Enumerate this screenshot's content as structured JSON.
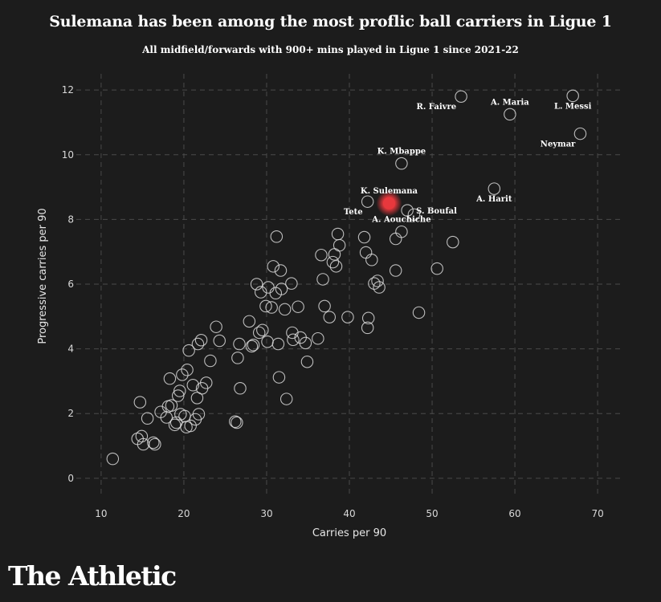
{
  "chart_data": {
    "type": "scatter",
    "title": "Sulemana has been among the most proflic ball carriers in Ligue 1",
    "subtitle": "All midfield/forwards with 900+ mins played in Ligue 1 since 2021-22",
    "xlabel": "Carries per 90",
    "ylabel": "Progressive carries per 90",
    "xlim": [
      7,
      73
    ],
    "ylim": [
      -0.6,
      12.5
    ],
    "xticks": [
      10,
      20,
      30,
      40,
      50,
      60,
      70
    ],
    "yticks": [
      0,
      2,
      4,
      6,
      8,
      10,
      12
    ],
    "grid": true,
    "colors": {
      "background": "#1c1c1c",
      "point_stroke": "#d9d9d9",
      "grid": "#4a4a4a",
      "highlight": "#e8383d"
    },
    "highlight": {
      "name": "K. Sulemana",
      "x": 44.8,
      "y": 8.5
    },
    "labeled_points": [
      {
        "name": "R. Faivre",
        "x": 53.5,
        "y": 11.8,
        "anchor": "end",
        "pos": "below-left"
      },
      {
        "name": "A. Maria",
        "x": 59.4,
        "y": 11.25,
        "anchor": "middle",
        "pos": "above"
      },
      {
        "name": "L. Messi",
        "x": 67.0,
        "y": 11.82,
        "anchor": "middle",
        "pos": "below"
      },
      {
        "name": "Neymar",
        "x": 67.9,
        "y": 10.65,
        "anchor": "end",
        "pos": "below-left"
      },
      {
        "name": "K. Mbappe",
        "x": 46.3,
        "y": 9.73,
        "anchor": "middle",
        "pos": "above"
      },
      {
        "name": "A. Harit",
        "x": 57.5,
        "y": 8.95,
        "anchor": "middle",
        "pos": "below"
      },
      {
        "name": "K. Sulemana",
        "x": 44.8,
        "y": 8.5,
        "anchor": "middle",
        "pos": "above"
      },
      {
        "name": "Tete",
        "x": 42.2,
        "y": 8.55,
        "anchor": "end",
        "pos": "below-left"
      },
      {
        "name": "S. Boufal",
        "x": 47.0,
        "y": 8.28,
        "anchor": "start",
        "pos": "right"
      },
      {
        "name": "A. Aouchiche",
        "x": 46.3,
        "y": 7.62,
        "anchor": "middle",
        "pos": "above"
      }
    ],
    "points": [
      [
        11.4,
        0.6
      ],
      [
        14.4,
        1.22
      ],
      [
        14.7,
        2.35
      ],
      [
        14.9,
        1.3
      ],
      [
        15.1,
        1.05
      ],
      [
        15.6,
        1.85
      ],
      [
        16.3,
        1.1
      ],
      [
        16.5,
        1.05
      ],
      [
        17.2,
        2.05
      ],
      [
        17.9,
        1.88
      ],
      [
        18.1,
        2.22
      ],
      [
        18.3,
        3.08
      ],
      [
        18.5,
        2.25
      ],
      [
        18.9,
        1.65
      ],
      [
        19.1,
        1.72
      ],
      [
        19.3,
        2.55
      ],
      [
        19.5,
        2.7
      ],
      [
        19.6,
        1.98
      ],
      [
        19.8,
        3.2
      ],
      [
        20.1,
        1.92
      ],
      [
        20.3,
        1.58
      ],
      [
        20.4,
        3.35
      ],
      [
        20.6,
        3.95
      ],
      [
        20.8,
        1.62
      ],
      [
        21.1,
        2.88
      ],
      [
        21.4,
        1.82
      ],
      [
        21.6,
        2.48
      ],
      [
        21.7,
        4.15
      ],
      [
        21.8,
        1.98
      ],
      [
        22.1,
        4.27
      ],
      [
        22.2,
        2.78
      ],
      [
        22.7,
        2.95
      ],
      [
        23.2,
        3.63
      ],
      [
        23.9,
        4.68
      ],
      [
        24.3,
        4.25
      ],
      [
        26.2,
        1.75
      ],
      [
        26.4,
        1.72
      ],
      [
        26.5,
        3.72
      ],
      [
        26.7,
        4.15
      ],
      [
        26.8,
        2.78
      ],
      [
        27.9,
        4.85
      ],
      [
        28.2,
        4.08
      ],
      [
        28.4,
        4.12
      ],
      [
        28.8,
        6.0
      ],
      [
        29.1,
        4.5
      ],
      [
        29.3,
        5.75
      ],
      [
        29.5,
        4.58
      ],
      [
        29.9,
        5.32
      ],
      [
        30.1,
        4.22
      ],
      [
        30.2,
        5.9
      ],
      [
        30.6,
        5.28
      ],
      [
        30.8,
        6.55
      ],
      [
        31.1,
        5.72
      ],
      [
        31.2,
        7.47
      ],
      [
        31.4,
        4.15
      ],
      [
        31.5,
        3.12
      ],
      [
        31.7,
        6.42
      ],
      [
        31.8,
        5.85
      ],
      [
        32.2,
        5.22
      ],
      [
        32.4,
        2.45
      ],
      [
        33.0,
        6.02
      ],
      [
        33.1,
        4.5
      ],
      [
        33.2,
        4.28
      ],
      [
        33.8,
        5.3
      ],
      [
        34.1,
        4.35
      ],
      [
        34.7,
        4.18
      ],
      [
        34.9,
        3.6
      ],
      [
        36.2,
        4.32
      ],
      [
        36.6,
        6.9
      ],
      [
        36.8,
        6.15
      ],
      [
        37.0,
        5.32
      ],
      [
        37.6,
        4.98
      ],
      [
        38.0,
        6.68
      ],
      [
        38.2,
        6.92
      ],
      [
        38.4,
        6.55
      ],
      [
        38.6,
        7.55
      ],
      [
        38.8,
        7.2
      ],
      [
        39.8,
        4.98
      ],
      [
        41.8,
        7.45
      ],
      [
        42.0,
        6.98
      ],
      [
        42.2,
        4.65
      ],
      [
        42.3,
        4.95
      ],
      [
        42.7,
        6.75
      ],
      [
        43.0,
        6.02
      ],
      [
        43.4,
        6.1
      ],
      [
        43.6,
        5.9
      ],
      [
        45.6,
        7.4
      ],
      [
        45.6,
        6.42
      ],
      [
        47.8,
        8.15
      ],
      [
        48.4,
        5.12
      ],
      [
        50.6,
        6.48
      ],
      [
        52.5,
        7.3
      ]
    ]
  },
  "brand": {
    "name": "The Athletic"
  }
}
